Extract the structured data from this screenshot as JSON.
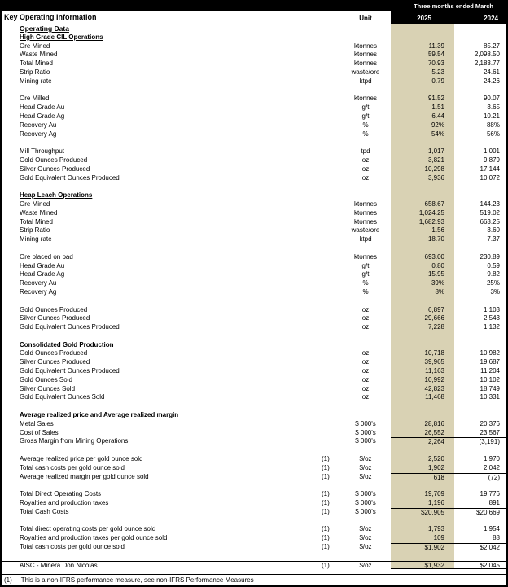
{
  "header": {
    "period_label": "Three months ended March",
    "title": "Key Operating Information",
    "unit_label": "Unit",
    "col_2025": "2025",
    "col_2024": "2024",
    "subtitle": "Operating Data"
  },
  "colors": {
    "accent_band": "#d9d2b4",
    "header_bg": "#000000"
  },
  "sections": [
    {
      "title": "High Grade CIL Operations",
      "rows": [
        {
          "label": "Ore Mined",
          "unit": "ktonnes",
          "v2025": "11.39",
          "v2024": "85.27"
        },
        {
          "label": "Waste Mined",
          "unit": "ktonnes",
          "v2025": "59.54",
          "v2024": "2,098.50"
        },
        {
          "label": "Total Mined",
          "unit": "ktonnes",
          "v2025": "70.93",
          "v2024": "2,183.77"
        },
        {
          "label": "Strip Ratio",
          "unit": "waste/ore",
          "v2025": "5.23",
          "v2024": "24.61"
        },
        {
          "label": "Mining rate",
          "unit": "ktpd",
          "v2025": "0.79",
          "v2024": "24.26"
        },
        {
          "spacer": true
        },
        {
          "label": "Ore Milled",
          "unit": "ktonnes",
          "v2025": "91.52",
          "v2024": "90.07"
        },
        {
          "label": "Head Grade Au",
          "unit": "g/t",
          "v2025": "1.51",
          "v2024": "3.65"
        },
        {
          "label": "Head Grade Ag",
          "unit": "g/t",
          "v2025": "6.44",
          "v2024": "10.21"
        },
        {
          "label": "Recovery Au",
          "unit": "%",
          "v2025": "92%",
          "v2024": "88%"
        },
        {
          "label": "Recovery Ag",
          "unit": "%",
          "v2025": "54%",
          "v2024": "56%"
        },
        {
          "spacer": true
        },
        {
          "label": "Mill Throughput",
          "unit": "tpd",
          "v2025": "1,017",
          "v2024": "1,001"
        },
        {
          "label": "Gold Ounces Produced",
          "unit": "oz",
          "v2025": "3,821",
          "v2024": "9,879"
        },
        {
          "label": "Silver Ounces Produced",
          "unit": "oz",
          "v2025": "10,298",
          "v2024": "17,144"
        },
        {
          "label": "Gold Equivalent Ounces Produced",
          "unit": "oz",
          "v2025": "3,936",
          "v2024": "10,072"
        },
        {
          "spacer": true
        }
      ]
    },
    {
      "title": "Heap Leach Operations",
      "rows": [
        {
          "label": "Ore Mined",
          "unit": "ktonnes",
          "v2025": "658.67",
          "v2024": "144.23"
        },
        {
          "label": "Waste Mined",
          "unit": "ktonnes",
          "v2025": "1,024.25",
          "v2024": "519.02"
        },
        {
          "label": "Total Mined",
          "unit": "ktonnes",
          "v2025": "1,682.93",
          "v2024": "663.25"
        },
        {
          "label": "Strip Ratio",
          "unit": "waste/ore",
          "v2025": "1.56",
          "v2024": "3.60"
        },
        {
          "label": "Mining rate",
          "unit": "ktpd",
          "v2025": "18.70",
          "v2024": "7.37"
        },
        {
          "spacer": true
        },
        {
          "label": "Ore placed on pad",
          "unit": "ktonnes",
          "v2025": "693.00",
          "v2024": "230.89"
        },
        {
          "label": "Head Grade Au",
          "unit": "g/t",
          "v2025": "0.80",
          "v2024": "0.59"
        },
        {
          "label": "Head Grade Ag",
          "unit": "g/t",
          "v2025": "15.95",
          "v2024": "9.82"
        },
        {
          "label": "Recovery Au",
          "unit": "%",
          "v2025": "39%",
          "v2024": "25%"
        },
        {
          "label": "Recovery Ag",
          "unit": "%",
          "v2025": "8%",
          "v2024": "3%"
        },
        {
          "spacer": true
        },
        {
          "label": "Gold Ounces Produced",
          "unit": "oz",
          "v2025": "6,897",
          "v2024": "1,103"
        },
        {
          "label": "Silver Ounces Produced",
          "unit": "oz",
          "v2025": "29,666",
          "v2024": "2,543"
        },
        {
          "label": "Gold Equivalent Ounces Produced",
          "unit": "oz",
          "v2025": "7,228",
          "v2024": "1,132"
        },
        {
          "spacer": true
        }
      ]
    },
    {
      "title": "Consolidated Gold Production",
      "rows": [
        {
          "label": "Gold Ounces Produced",
          "unit": "oz",
          "v2025": "10,718",
          "v2024": "10,982"
        },
        {
          "label": "Silver Ounces Produced",
          "unit": "oz",
          "v2025": "39,965",
          "v2024": "19,687"
        },
        {
          "label": "Gold Equivalent Ounces Produced",
          "unit": "oz",
          "v2025": "11,163",
          "v2024": "11,204"
        },
        {
          "label": "Gold Ounces Sold",
          "unit": "oz",
          "v2025": "10,992",
          "v2024": "10,102"
        },
        {
          "label": "Silver Ounces Sold",
          "unit": "oz",
          "v2025": "42,823",
          "v2024": "18,749"
        },
        {
          "label": "Gold Equivalent Ounces Sold",
          "unit": "oz",
          "v2025": "11,468",
          "v2024": "10,331"
        },
        {
          "spacer": true
        }
      ]
    },
    {
      "title": "Average realized price and Average realized margin",
      "rows": [
        {
          "label": "Metal Sales",
          "unit": "$ 000's",
          "v2025": "28,816",
          "v2024": "20,376"
        },
        {
          "label": "Cost of Sales",
          "unit": "$ 000's",
          "v2025": "26,552",
          "v2024": "23,567"
        },
        {
          "label": "Gross Margin from Mining Operations",
          "unit": "$ 000's",
          "v2025": "2,264",
          "v2024": "(3,191)",
          "topline": true
        },
        {
          "spacer": true
        },
        {
          "label": "Average realized price per gold ounce sold",
          "fn": "(1)",
          "unit": "$/oz",
          "v2025": "2,520",
          "v2024": "1,970"
        },
        {
          "label": "Total cash costs per gold ounce sold",
          "fn": "(1)",
          "unit": "$/oz",
          "v2025": "1,902",
          "v2024": "2,042"
        },
        {
          "label": "Average realized margin per gold ounce sold",
          "fn": "(1)",
          "unit": "$/oz",
          "v2025": "618",
          "v2024": "(72)",
          "topline": true
        },
        {
          "spacer": true
        },
        {
          "label": "Total Direct Operating Costs",
          "fn": "(1)",
          "unit": "$ 000's",
          "v2025": "19,709",
          "v2024": "19,776"
        },
        {
          "label": "Royalties and production taxes",
          "fn": "(1)",
          "unit": "$ 000's",
          "v2025": "1,196",
          "v2024": "891"
        },
        {
          "label": "Total Cash Costs",
          "fn": "(1)",
          "unit": "$ 000's",
          "v2025": "$20,905",
          "v2024": "$20,669",
          "topline": true
        },
        {
          "spacer": true
        },
        {
          "label": "Total direct operating costs per gold ounce sold",
          "fn": "(1)",
          "unit": "$/oz",
          "v2025": "1,793",
          "v2024": "1,954"
        },
        {
          "label": "Royalties and production taxes per gold ounce sold",
          "fn": "(1)",
          "unit": "$/oz",
          "v2025": "109",
          "v2024": "88"
        },
        {
          "label": "Total cash costs per gold ounce sold",
          "fn": "(1)",
          "unit": "$/oz",
          "v2025": "$1,902",
          "v2024": "$2,042",
          "topline": true
        },
        {
          "spacer": true
        },
        {
          "label": "AISC - Minera Don Nicolas",
          "fn": "(1)",
          "unit": "$/oz",
          "v2025": "$1,932",
          "v2024": "$2,045",
          "rule_above": true,
          "underline_vals": true
        }
      ]
    }
  ],
  "footnote": {
    "marker": "(1)",
    "text": "This is a non-IFRS performance measure, see non-IFRS Performance Measures"
  }
}
